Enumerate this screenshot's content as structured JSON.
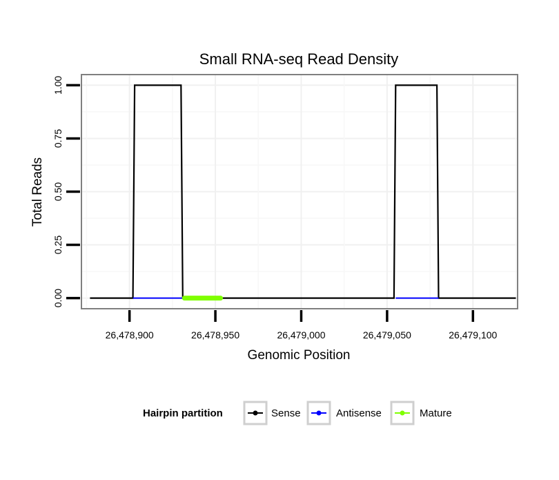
{
  "chart_data": {
    "type": "line",
    "title": "Small RNA-seq Read Density",
    "xlabel": "Genomic Position",
    "ylabel": "Total Reads",
    "xlim": [
      26478872,
      26479126
    ],
    "ylim": [
      -0.05,
      1.05
    ],
    "x_ticks": [
      26478900,
      26478950,
      26479000,
      26479050,
      26479100
    ],
    "x_tick_labels": [
      "26,478,900",
      "26,478,950",
      "26,479,000",
      "26,479,050",
      "26,479,100"
    ],
    "y_ticks": [
      0,
      0.25,
      0.5,
      0.75,
      1
    ],
    "y_tick_labels": [
      "0.00",
      "0.25",
      "0.50",
      "0.75",
      "1.00"
    ],
    "grid": true,
    "series": [
      {
        "name": "Sense",
        "color": "#000000",
        "x": [
          26478877,
          26478902,
          26478903,
          26478930,
          26478931,
          26479054,
          26479055,
          26479079,
          26479080,
          26479125
        ],
        "y": [
          0,
          0,
          1,
          1,
          0,
          0,
          1,
          1,
          0,
          0
        ]
      },
      {
        "name": "Antisense",
        "color": "#0000ff",
        "segments": [
          [
            26478902,
            26478931
          ],
          [
            26479055,
            26479080
          ]
        ],
        "y": 0
      },
      {
        "name": "Mature",
        "color": "#7fff00",
        "segments": [
          [
            26478932,
            26478953
          ]
        ],
        "y": 0
      }
    ],
    "legend": {
      "title": "Hairpin partition",
      "position": "bottom",
      "entries": [
        "Sense",
        "Antisense",
        "Mature"
      ]
    }
  }
}
